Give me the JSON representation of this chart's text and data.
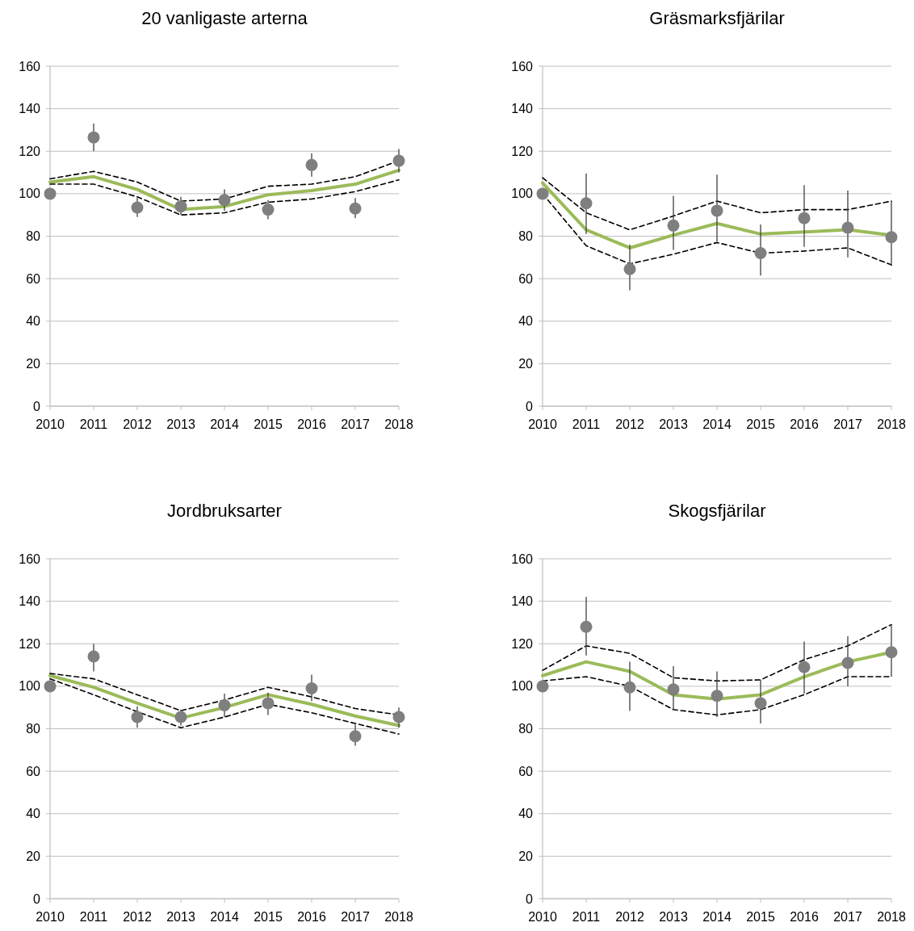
{
  "chart_data": [
    {
      "type": "line",
      "title": "20 vanligaste arterna",
      "categories": [
        "2010",
        "2011",
        "2012",
        "2013",
        "2014",
        "2015",
        "2016",
        "2017",
        "2018"
      ],
      "ylim": [
        0,
        160
      ],
      "yticks": [
        0,
        20,
        40,
        60,
        80,
        100,
        120,
        140,
        160
      ],
      "grid": "y",
      "series": [
        {
          "type": "line",
          "color": "#9bbb59",
          "line_style": "solid",
          "values": [
            105.5,
            108,
            102,
            92.5,
            94,
            99.5,
            101.5,
            104.5,
            111
          ]
        },
        {
          "type": "line",
          "color": "#000000",
          "line_style": "dashed",
          "values": [
            107,
            110.5,
            105.5,
            96.5,
            97.5,
            103.5,
            104.5,
            108,
            115.5
          ]
        },
        {
          "type": "line",
          "color": "#000000",
          "line_style": "dashed",
          "values": [
            104.5,
            104.5,
            98.5,
            90,
            91,
            96,
            97.5,
            101,
            106.5
          ]
        },
        {
          "type": "scatter",
          "color": "#7f7f7f",
          "marker": "circle",
          "values": [
            100,
            126.5,
            93.5,
            94,
            97,
            92.5,
            113.5,
            93,
            115.5
          ],
          "errors": [
            null,
            [
              120,
              133
            ],
            [
              89,
              98
            ],
            [
              90,
              98.5
            ],
            [
              92,
              102
            ],
            [
              88,
              97
            ],
            [
              108,
              119
            ],
            [
              88.5,
              98
            ],
            [
              110,
              121
            ]
          ]
        }
      ]
    },
    {
      "type": "line",
      "title": "Gräsmarksfjärilar",
      "categories": [
        "2010",
        "2011",
        "2012",
        "2013",
        "2014",
        "2015",
        "2016",
        "2017",
        "2018"
      ],
      "ylim": [
        0,
        160
      ],
      "yticks": [
        0,
        20,
        40,
        60,
        80,
        100,
        120,
        140,
        160
      ],
      "grid": "y",
      "series": [
        {
          "type": "line",
          "color": "#9bbb59",
          "line_style": "solid",
          "values": [
            105,
            83,
            74.5,
            80.5,
            86,
            81,
            82,
            83,
            80.5
          ]
        },
        {
          "type": "line",
          "color": "#000000",
          "line_style": "dashed",
          "values": [
            107.5,
            91,
            83,
            89.5,
            96.5,
            91,
            92.5,
            92.5,
            96.5
          ]
        },
        {
          "type": "line",
          "color": "#000000",
          "line_style": "dashed",
          "values": [
            100,
            75.5,
            67,
            71.5,
            77,
            72,
            73,
            74.5,
            66.5
          ]
        },
        {
          "type": "scatter",
          "color": "#7f7f7f",
          "marker": "circle",
          "values": [
            100,
            95.5,
            64.5,
            85,
            92,
            72,
            88.5,
            84,
            79.5
          ],
          "errors": [
            null,
            [
              81,
              109.5
            ],
            [
              54.5,
              76
            ],
            [
              73.5,
              99
            ],
            [
              77.5,
              109
            ],
            [
              61.5,
              85.5
            ],
            [
              75,
              104
            ],
            [
              70,
              101.5
            ],
            [
              66,
              96.5
            ]
          ]
        }
      ]
    },
    {
      "type": "line",
      "title": "Jordbruksarter",
      "categories": [
        "2010",
        "2011",
        "2012",
        "2013",
        "2014",
        "2015",
        "2016",
        "2017",
        "2018"
      ],
      "ylim": [
        0,
        160
      ],
      "yticks": [
        0,
        20,
        40,
        60,
        80,
        100,
        120,
        140,
        160
      ],
      "grid": "y",
      "series": [
        {
          "type": "line",
          "color": "#9bbb59",
          "line_style": "solid",
          "values": [
            105,
            99.5,
            92,
            85,
            90,
            96,
            91.5,
            86,
            81.5
          ]
        },
        {
          "type": "line",
          "color": "#000000",
          "line_style": "dashed",
          "values": [
            106,
            103.5,
            96,
            88.5,
            93.5,
            99.5,
            95,
            89.5,
            86.5
          ]
        },
        {
          "type": "line",
          "color": "#000000",
          "line_style": "dashed",
          "values": [
            103.5,
            96,
            88,
            80.5,
            85.5,
            91.5,
            87.5,
            82.5,
            77.5
          ]
        },
        {
          "type": "scatter",
          "color": "#7f7f7f",
          "marker": "circle",
          "values": [
            100,
            114,
            85.5,
            85.5,
            91,
            92,
            99,
            76.5,
            85.5
          ],
          "errors": [
            null,
            [
              107,
              120
            ],
            [
              80.5,
              90.5
            ],
            [
              81.5,
              89
            ],
            [
              85.5,
              96.5
            ],
            [
              86.5,
              97
            ],
            [
              93,
              105.5
            ],
            [
              72,
              82
            ],
            [
              80.5,
              90
            ]
          ]
        }
      ]
    },
    {
      "type": "line",
      "title": "Skogsfjärilar",
      "categories": [
        "2010",
        "2011",
        "2012",
        "2013",
        "2014",
        "2015",
        "2016",
        "2017",
        "2018"
      ],
      "ylim": [
        0,
        160
      ],
      "yticks": [
        0,
        20,
        40,
        60,
        80,
        100,
        120,
        140,
        160
      ],
      "grid": "y",
      "series": [
        {
          "type": "line",
          "color": "#9bbb59",
          "line_style": "solid",
          "values": [
            105,
            111.5,
            107,
            96,
            94,
            96,
            104.5,
            111.5,
            116
          ]
        },
        {
          "type": "line",
          "color": "#000000",
          "line_style": "dashed",
          "values": [
            107.5,
            119,
            115.5,
            104,
            102.5,
            103,
            112.5,
            119,
            129
          ]
        },
        {
          "type": "line",
          "color": "#000000",
          "line_style": "dashed",
          "values": [
            102.5,
            104.5,
            100,
            89,
            86.5,
            89,
            96,
            104.5,
            104.5
          ]
        },
        {
          "type": "scatter",
          "color": "#7f7f7f",
          "marker": "circle",
          "values": [
            100,
            128,
            99.5,
            98.5,
            95.5,
            92,
            109,
            111,
            116
          ],
          "errors": [
            null,
            [
              114.5,
              142
            ],
            [
              88.5,
              111.5
            ],
            [
              89,
              109.5
            ],
            [
              85.5,
              107
            ],
            [
              82.5,
              103
            ],
            [
              96.5,
              121
            ],
            [
              100,
              123.5
            ],
            [
              104.5,
              129
            ]
          ]
        }
      ]
    }
  ]
}
